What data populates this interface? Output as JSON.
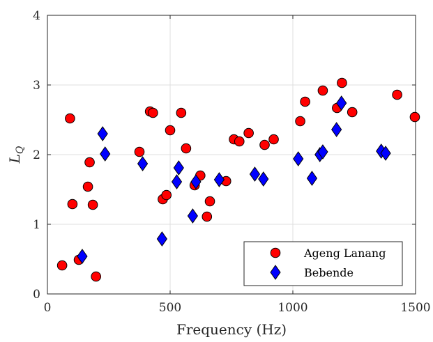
{
  "chart_data": {
    "type": "scatter",
    "xlabel": "Frequency (Hz)",
    "ylabel": "L",
    "ylabel_subscript": "Q",
    "xlim": [
      0,
      1500
    ],
    "ylim": [
      0,
      4
    ],
    "xticks": [
      0,
      500,
      1000,
      1500
    ],
    "yticks": [
      0,
      1,
      2,
      3,
      4
    ],
    "grid": true,
    "legend_position": "bottom-right",
    "series": [
      {
        "name": "Ageng Lanang",
        "marker": "circle",
        "color": "#ff0000",
        "x": [
          60,
          92,
          102,
          128,
          165,
          172,
          185,
          198,
          375,
          418,
          430,
          500,
          545,
          565,
          470,
          485,
          600,
          623,
          650,
          662,
          728,
          760,
          782,
          820,
          885,
          922,
          1030,
          1050,
          1122,
          1180,
          1200,
          1242,
          1425,
          1497
        ],
        "y": [
          0.41,
          2.52,
          1.29,
          0.49,
          1.54,
          1.89,
          1.28,
          0.25,
          2.04,
          2.62,
          2.6,
          2.35,
          2.6,
          2.09,
          1.36,
          1.42,
          1.56,
          1.7,
          1.11,
          1.33,
          1.62,
          2.22,
          2.19,
          2.31,
          2.14,
          2.22,
          2.48,
          2.76,
          2.92,
          2.67,
          3.03,
          2.61,
          2.86,
          2.54
        ]
      },
      {
        "name": "Bebende",
        "marker": "diamond",
        "color": "#0000ff",
        "x": [
          142,
          225,
          235,
          388,
          467,
          527,
          535,
          592,
          605,
          700,
          845,
          880,
          1022,
          1078,
          1110,
          1122,
          1178,
          1198,
          1360,
          1378
        ],
        "y": [
          0.54,
          2.3,
          2.01,
          1.87,
          0.79,
          1.61,
          1.81,
          1.12,
          1.61,
          1.64,
          1.72,
          1.65,
          1.94,
          1.66,
          2.0,
          2.04,
          2.36,
          2.74,
          2.05,
          2.02
        ]
      }
    ]
  }
}
